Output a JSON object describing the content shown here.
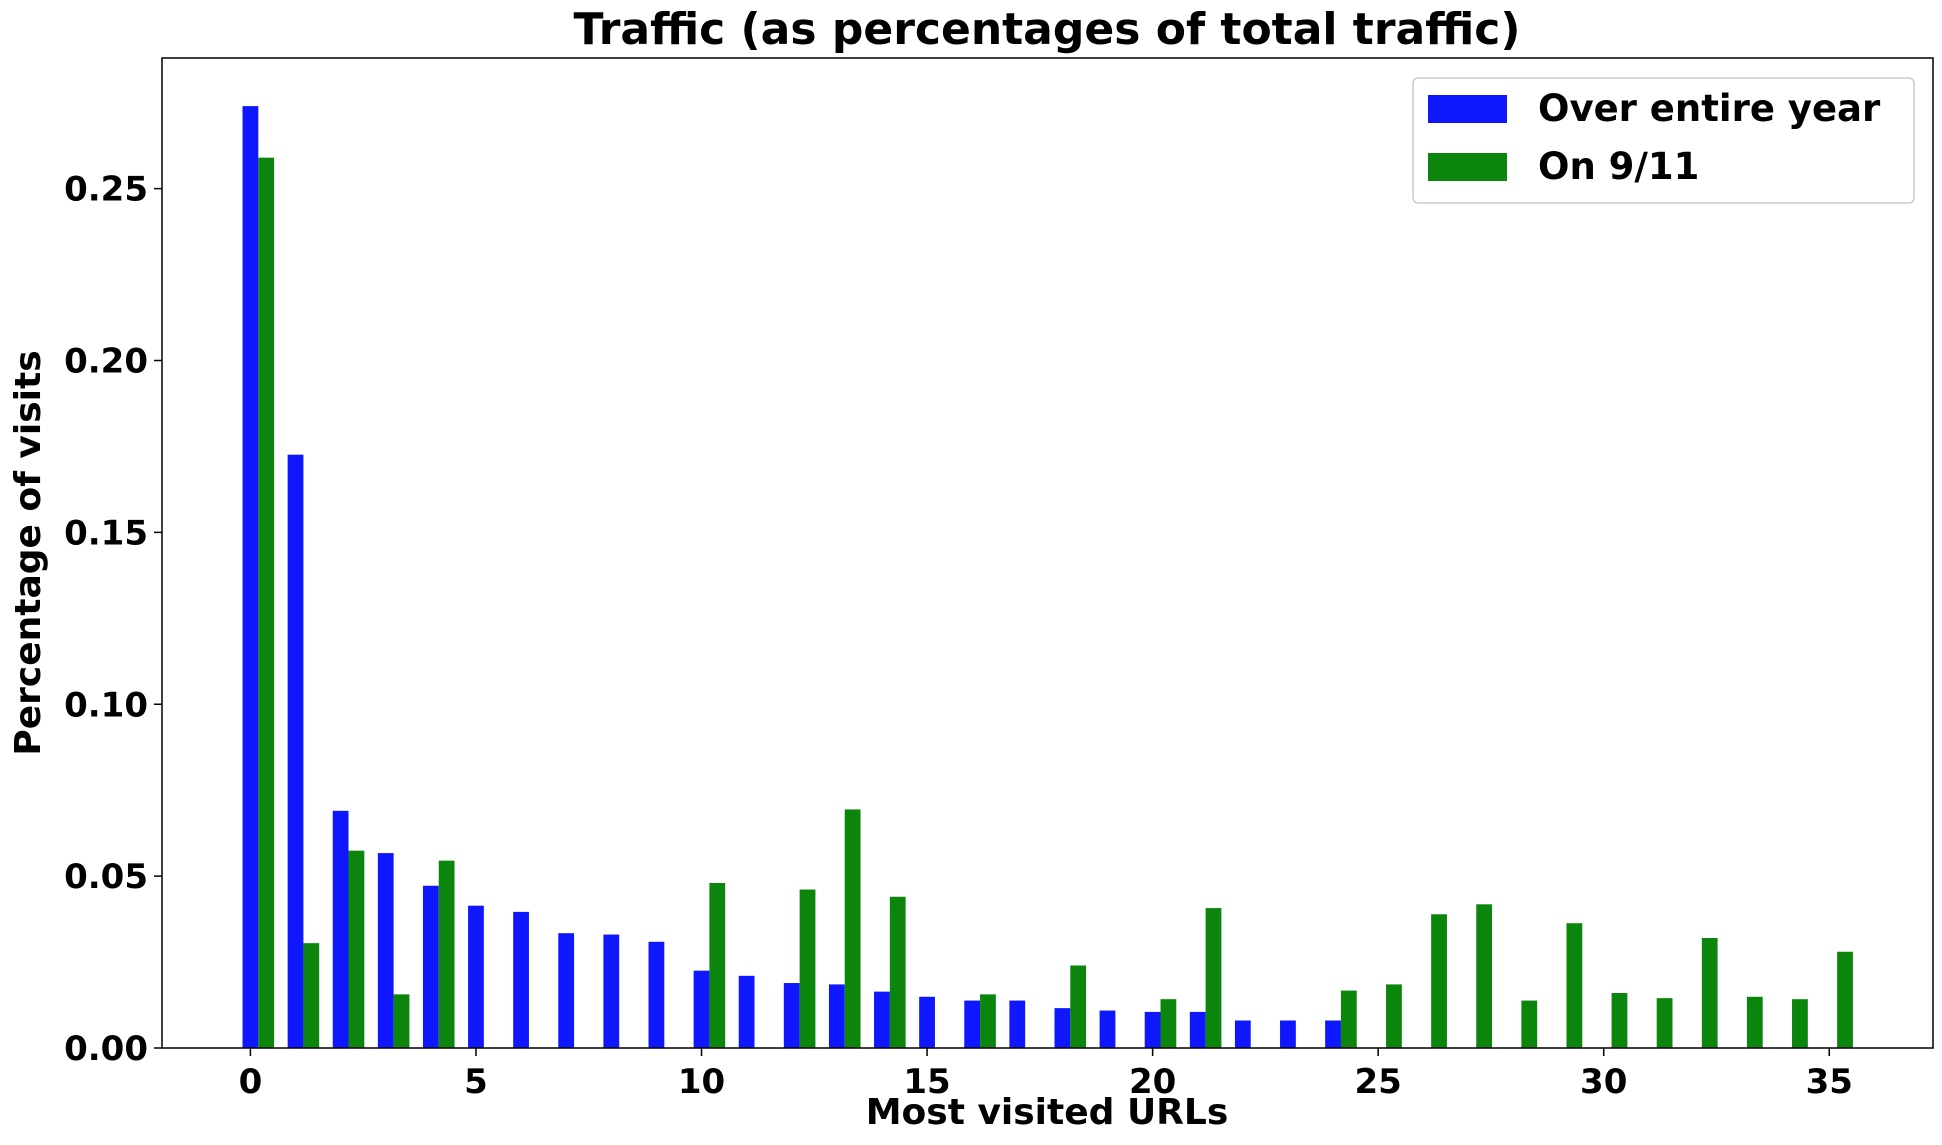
{
  "chart_data": {
    "type": "bar",
    "title": "Traffic (as percentages of total traffic)",
    "xlabel": "Most visited URLs",
    "ylabel": "Percentage of visits",
    "xlim": [
      -1.96,
      37.3
    ],
    "ylim": [
      0,
      0.288
    ],
    "xticks": [
      0,
      5,
      10,
      15,
      20,
      25,
      30,
      35
    ],
    "xtick_labels": [
      "0",
      "5",
      "10",
      "15",
      "20",
      "25",
      "30",
      "35"
    ],
    "yticks": [
      0,
      0.05,
      0.1,
      0.15,
      0.2,
      0.25
    ],
    "ytick_labels": [
      "0.00",
      "0.05",
      "0.10",
      "0.15",
      "0.20",
      "0.25"
    ],
    "grid": false,
    "legend_placement": "top-right",
    "bar_width": 0.35,
    "series": [
      {
        "name": "Over entire year",
        "color": "#0f17ff",
        "offset": 0,
        "x": [
          0,
          1,
          2,
          3,
          4,
          5,
          6,
          7,
          8,
          9,
          10,
          11,
          12,
          13,
          14,
          15,
          16,
          17,
          18,
          19,
          20,
          21,
          22,
          23,
          24
        ],
        "values": [
          0.274,
          0.1726,
          0.069,
          0.0567,
          0.0472,
          0.0414,
          0.0396,
          0.0334,
          0.033,
          0.0309,
          0.0225,
          0.021,
          0.0189,
          0.0185,
          0.0164,
          0.0149,
          0.0138,
          0.0138,
          0.0116,
          0.0109,
          0.0105,
          0.0105,
          0.008,
          0.008,
          0.008
        ]
      },
      {
        "name": "On 9/11",
        "color": "#0b850b",
        "offset": 0.35,
        "x": [
          0,
          1,
          2,
          3,
          4,
          10,
          12,
          13,
          14,
          16,
          18,
          20,
          21,
          24,
          25,
          26,
          27,
          28,
          29,
          30,
          31,
          32,
          33,
          34,
          35
        ],
        "values": [
          0.259,
          0.0305,
          0.0574,
          0.0156,
          0.0545,
          0.048,
          0.0461,
          0.0694,
          0.044,
          0.0156,
          0.024,
          0.0142,
          0.0407,
          0.0167,
          0.0185,
          0.0389,
          0.0418,
          0.0138,
          0.0363,
          0.016,
          0.0145,
          0.032,
          0.0149,
          0.0142,
          0.028
        ]
      }
    ]
  }
}
